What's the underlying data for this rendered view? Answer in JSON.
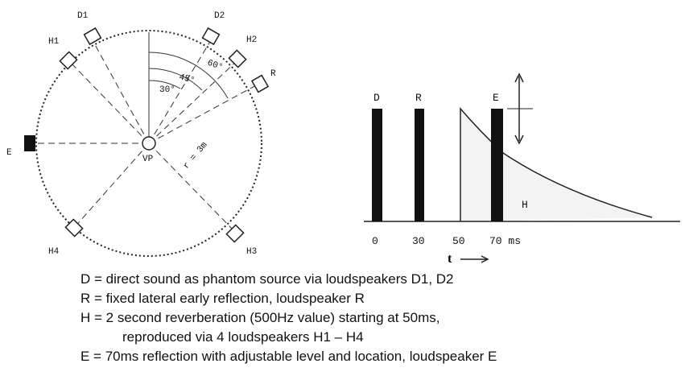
{
  "diagram": {
    "speakers": {
      "D1": "D1",
      "D2": "D2",
      "H1": "H1",
      "H2": "H2",
      "R": "R",
      "E": "E",
      "H3": "H3",
      "H4": "H4"
    },
    "angles": [
      "60°",
      "45°",
      "30°"
    ],
    "center": "VP",
    "radius": "r = 3m",
    "timeline": {
      "bars": [
        "D",
        "R",
        "E"
      ],
      "reverb": "H",
      "ticks": [
        "0",
        "30",
        "50",
        "70 ms"
      ],
      "axis": "t"
    }
  },
  "caption": [
    "D = direct sound as phantom source via loudspeakers D1, D2",
    "R = fixed lateral early reflection, loudspeaker R",
    "H = 2 second reverberation (500Hz value) starting at 50ms,",
    "reproduced via 4 loudspeakers H1 – H4",
    "E = 70ms reflection with adjustable level and location, loudspeaker E"
  ]
}
